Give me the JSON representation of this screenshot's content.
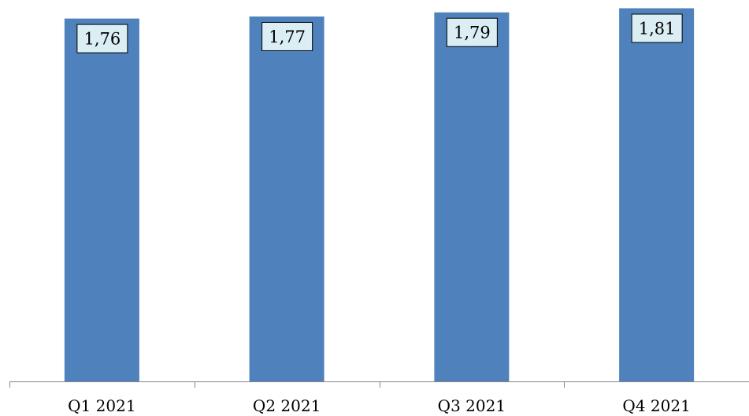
{
  "chart_data": {
    "type": "bar",
    "categories": [
      "Q1 2021",
      "Q2 2021",
      "Q3 2021",
      "Q4 2021"
    ],
    "values": [
      1.76,
      1.77,
      1.79,
      1.81
    ],
    "value_labels": [
      "1,76",
      "1,77",
      "1,79",
      "1,81"
    ],
    "ylim": [
      0,
      1.85
    ],
    "grid": false,
    "legend": "none",
    "data_labels": "inside-top",
    "colors": {
      "bar": "#4F81BD",
      "label_background": "#DBEEF4",
      "axis": "#868686",
      "text": "#000000"
    }
  }
}
